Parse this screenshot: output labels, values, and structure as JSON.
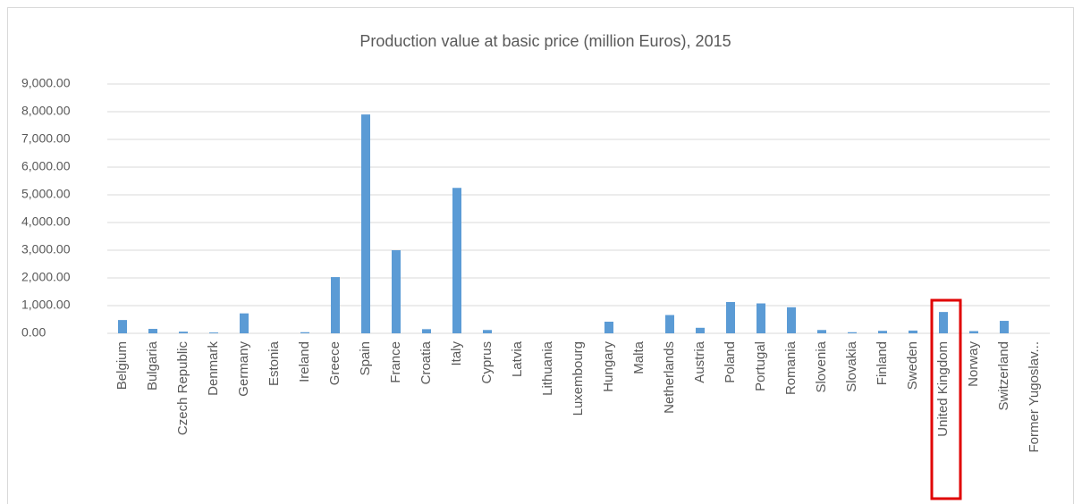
{
  "chart_data": {
    "type": "bar",
    "title": "Production value at basic price (million Euros), 2015",
    "categories": [
      "Belgium",
      "Bulgaria",
      "Czech Republic",
      "Denmark",
      "Germany",
      "Estonia",
      "Ireland",
      "Greece",
      "Spain",
      "France",
      "Croatia",
      "Italy",
      "Cyprus",
      "Latvia",
      "Lithuania",
      "Luxembourg",
      "Hungary",
      "Malta",
      "Netherlands",
      "Austria",
      "Poland",
      "Portugal",
      "Romania",
      "Slovenia",
      "Slovakia",
      "Finland",
      "Sweden",
      "United Kingdom",
      "Norway",
      "Switzerland",
      "Former Yugoslav..."
    ],
    "values": [
      480,
      160,
      60,
      30,
      720,
      0,
      40,
      2030,
      7900,
      3000,
      150,
      5250,
      120,
      0,
      0,
      0,
      420,
      0,
      660,
      200,
      1130,
      1080,
      940,
      120,
      40,
      90,
      100,
      770,
      80,
      450,
      0
    ],
    "color": "#5b9bd5",
    "ylim": [
      0,
      9000
    ],
    "yticks": [
      {
        "value": 0,
        "label": "0.00"
      },
      {
        "value": 1000,
        "label": "1,000.00"
      },
      {
        "value": 2000,
        "label": "2,000.00"
      },
      {
        "value": 3000,
        "label": "3,000.00"
      },
      {
        "value": 4000,
        "label": "4,000.00"
      },
      {
        "value": 5000,
        "label": "5,000.00"
      },
      {
        "value": 6000,
        "label": "6,000.00"
      },
      {
        "value": 7000,
        "label": "7,000.00"
      },
      {
        "value": 8000,
        "label": "8,000.00"
      },
      {
        "value": 9000,
        "label": "9,000.00"
      }
    ],
    "grid": true
  }
}
